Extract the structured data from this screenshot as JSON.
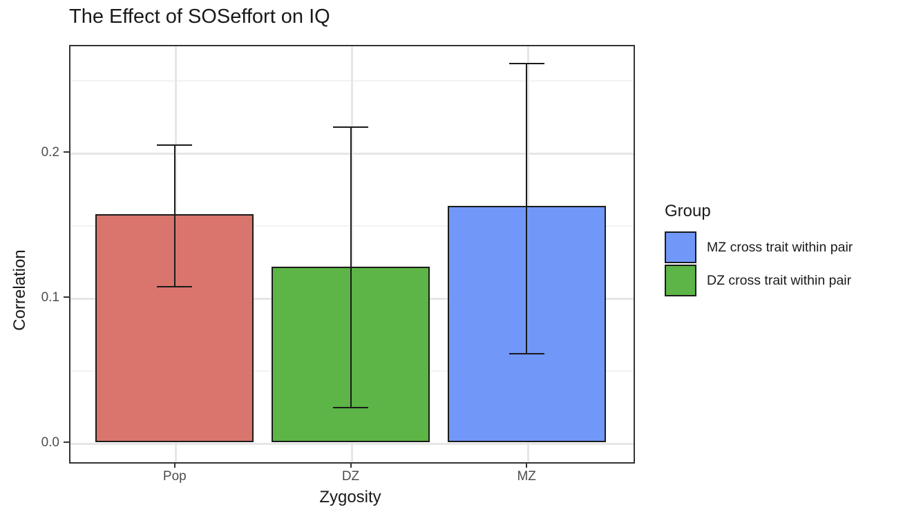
{
  "chart_data": {
    "type": "bar",
    "title": "The Effect of SOSeffort on IQ",
    "xlabel": "Zygosity",
    "ylabel": "Correlation",
    "categories": [
      "Pop",
      "DZ",
      "MZ"
    ],
    "values": [
      0.157,
      0.121,
      0.163
    ],
    "error_low": [
      0.107,
      0.024,
      0.061
    ],
    "error_high": [
      0.205,
      0.217,
      0.261
    ],
    "bar_colors": [
      "#D9756D",
      "#5CB546",
      "#7197F8"
    ],
    "yticks": [
      0.0,
      0.1,
      0.2
    ],
    "ytick_labels": [
      "0.0",
      "0.1",
      "0.2"
    ],
    "ylim": [
      -0.013,
      0.274
    ],
    "grid": true,
    "legend": {
      "title": "Group",
      "position": "right",
      "entries": [
        {
          "label": "MZ cross trait within pair",
          "color": "#7197F8"
        },
        {
          "label": "DZ cross trait within pair",
          "color": "#5CB546"
        }
      ]
    }
  }
}
